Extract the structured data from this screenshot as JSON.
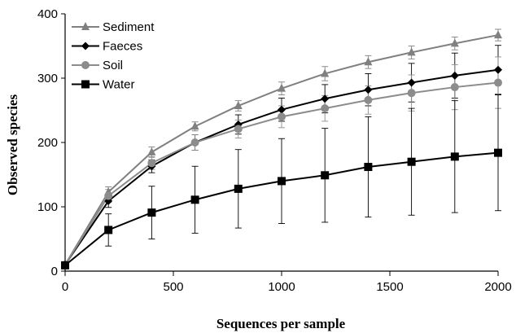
{
  "chart_data": {
    "type": "line",
    "xlabel": "Sequences per sample",
    "ylabel": "Observed species",
    "xlim": [
      0,
      2000
    ],
    "ylim": [
      0,
      400
    ],
    "xticks": [
      0,
      500,
      1000,
      1500,
      2000
    ],
    "yticks": [
      0,
      100,
      200,
      300,
      400
    ],
    "grid": false,
    "legend_position": "top-left",
    "x": [
      0,
      200,
      400,
      600,
      800,
      1000,
      1200,
      1400,
      1600,
      1800,
      2000
    ],
    "series": [
      {
        "name": "Sediment",
        "marker": "triangle",
        "color": "#808080",
        "values": [
          10,
          123,
          185,
          225,
          257,
          284,
          307,
          325,
          340,
          354,
          367
        ],
        "errors": [
          2,
          8,
          8,
          7,
          8,
          10,
          11,
          10,
          10,
          10,
          9
        ]
      },
      {
        "name": "Faeces",
        "marker": "diamond",
        "color": "#000000",
        "values": [
          10,
          109,
          163,
          200,
          228,
          251,
          268,
          282,
          293,
          304,
          313
        ],
        "errors": [
          2,
          10,
          10,
          12,
          15,
          18,
          22,
          25,
          30,
          35,
          38
        ]
      },
      {
        "name": "Soil",
        "marker": "circle",
        "color": "#8c8c8c",
        "values": [
          10,
          117,
          168,
          200,
          221,
          240,
          253,
          266,
          277,
          286,
          293
        ],
        "errors": [
          2,
          10,
          10,
          12,
          14,
          17,
          20,
          22,
          28,
          35,
          40
        ]
      },
      {
        "name": "Water",
        "marker": "square",
        "color": "#000000",
        "values": [
          9,
          64,
          91,
          111,
          128,
          140,
          149,
          162,
          170,
          178,
          184
        ],
        "errors": [
          2,
          25,
          41,
          52,
          61,
          66,
          73,
          78,
          83,
          87,
          90
        ]
      }
    ]
  }
}
